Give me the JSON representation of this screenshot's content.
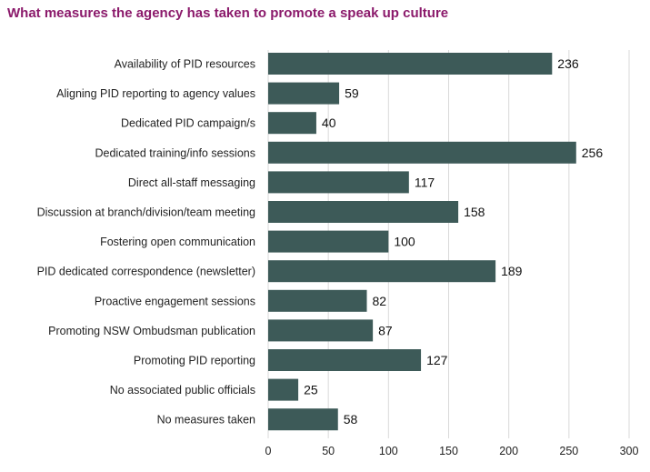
{
  "chart_data": {
    "type": "bar",
    "orientation": "horizontal",
    "title": "What measures the agency has taken to promote a speak up culture",
    "categories": [
      "Availability of PID resources",
      "Aligning PID reporting to agency values",
      "Dedicated PID campaign/s",
      "Dedicated training/info sessions",
      "Direct all-staff messaging",
      "Discussion at branch/division/team meeting",
      "Fostering open communication",
      "PID dedicated correspondence (newsletter)",
      "Proactive engagement sessions",
      "Promoting NSW Ombudsman publication",
      "Promoting PID reporting",
      "No associated public officials",
      "No measures taken"
    ],
    "values": [
      236,
      59,
      40,
      256,
      117,
      158,
      100,
      189,
      82,
      87,
      127,
      25,
      58
    ],
    "xlim": [
      0,
      300
    ],
    "xticks": [
      0,
      50,
      100,
      150,
      200,
      250,
      300
    ],
    "grid": true,
    "bar_color": "#3d5a58",
    "title_color": "#8b1a6b"
  }
}
